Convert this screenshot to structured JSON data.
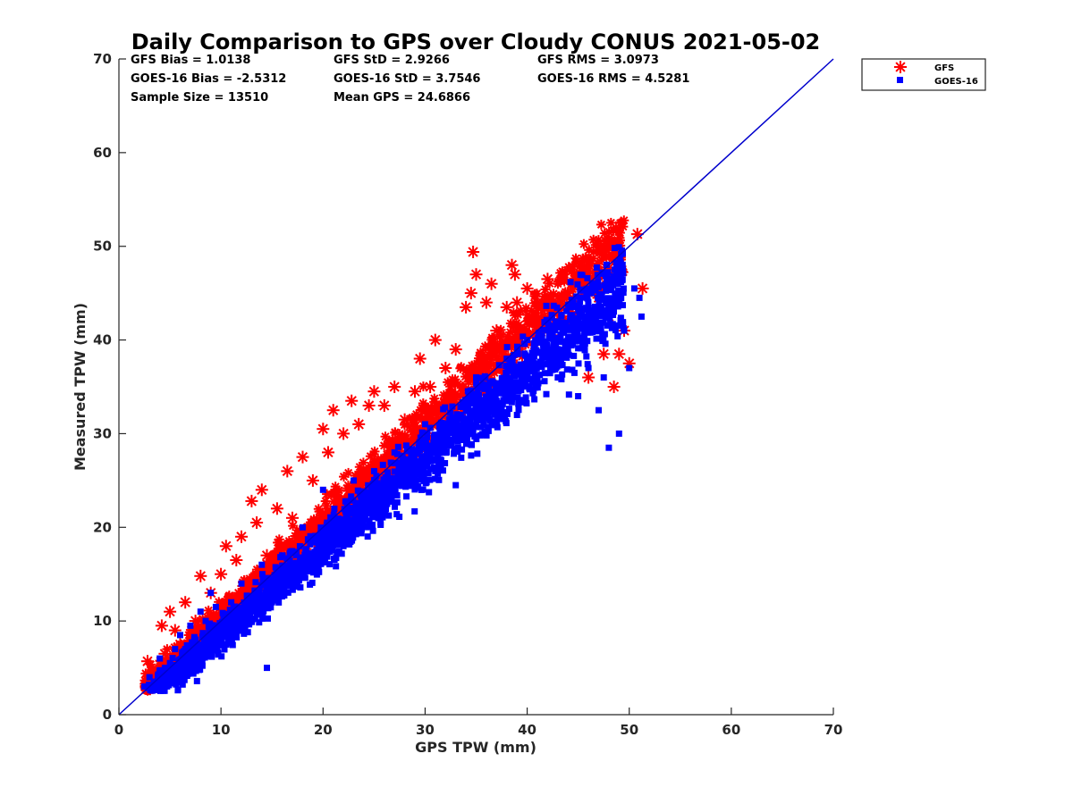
{
  "chart_data": {
    "type": "scatter",
    "title": "Daily Comparison to GPS over Cloudy CONUS 2021-05-02",
    "xlabel": "GPS TPW (mm)",
    "ylabel": "Measured TPW (mm)",
    "xlim": [
      0,
      70
    ],
    "ylim": [
      0,
      70
    ],
    "xticks": [
      "0",
      "10",
      "20",
      "30",
      "40",
      "50",
      "60",
      "70"
    ],
    "yticks": [
      "0",
      "10",
      "20",
      "30",
      "40",
      "50",
      "60",
      "70"
    ],
    "grid": false,
    "legend_position": "outside-top-right",
    "reference_line": {
      "x": [
        0,
        70
      ],
      "y": [
        0,
        70
      ],
      "color": "#0000cc"
    },
    "stats": [
      [
        "GFS Bias = 1.0138",
        "GFS StD = 2.9266",
        "GFS RMS = 3.0973"
      ],
      [
        "GOES-16 Bias = -2.5312",
        "GOES-16 StD = 3.7546",
        "GOES-16 RMS = 4.5281"
      ],
      [
        "Sample Size = 13510",
        "Mean GPS = 24.6866"
      ]
    ],
    "series": [
      {
        "name": "GFS",
        "marker": "asterisk",
        "color": "#ff0000",
        "n_points": 13510,
        "bias": 1.0138,
        "std": 2.9266,
        "x": [
          2.8,
          3.5,
          4.2,
          4.5,
          5.0,
          5.5,
          6.0,
          6.5,
          7.5,
          8.0,
          9.0,
          10.0,
          10.5,
          11.5,
          12.0,
          13.0,
          13.5,
          14.0,
          14.5,
          15.5,
          16.5,
          17.0,
          18.0,
          19.0,
          20.0,
          20.5,
          21.0,
          22.0,
          22.8,
          23.5,
          24.5,
          25.0,
          26.0,
          27.0,
          28.0,
          29.0,
          29.5,
          30.5,
          31.0,
          32.0,
          33.0,
          34.0,
          34.5,
          34.7,
          35.0,
          36.0,
          36.5,
          37.0,
          38.0,
          38.5,
          38.8,
          39.0,
          40.0,
          41.0,
          42.0,
          42.5,
          43.0,
          44.0,
          44.5,
          45.0,
          45.5,
          46.0,
          46.5,
          47.0,
          47.5,
          48.0,
          48.5,
          48.7,
          49.0,
          49.5,
          50.0,
          50.8,
          51.3
        ],
        "y": [
          5.7,
          3.8,
          9.5,
          6.5,
          11.0,
          9.0,
          7.5,
          12.0,
          10.0,
          14.8,
          13.0,
          15.0,
          18.0,
          16.5,
          19.0,
          22.8,
          20.5,
          24.0,
          17.0,
          22.0,
          26.0,
          21.0,
          27.5,
          25.0,
          30.5,
          28.0,
          32.5,
          30.0,
          33.5,
          31.0,
          33.0,
          34.5,
          33.0,
          35.0,
          31.5,
          34.5,
          38.0,
          35.0,
          40.0,
          37.0,
          39.0,
          43.5,
          45.0,
          49.4,
          47.0,
          44.0,
          46.0,
          41.0,
          43.5,
          48.0,
          47.0,
          44.0,
          45.5,
          44.0,
          46.5,
          40.5,
          42.0,
          45.0,
          47.8,
          43.0,
          46.0,
          36.0,
          49.4,
          44.5,
          38.5,
          42.5,
          35.0,
          52.0,
          38.5,
          41.0,
          37.5,
          51.3,
          45.5
        ]
      },
      {
        "name": "GOES-16",
        "marker": "square",
        "color": "#0000ff",
        "n_points": 13510,
        "bias": -2.5312,
        "std": 3.7546,
        "x": [
          2.5,
          3.0,
          3.5,
          4.0,
          4.5,
          5.0,
          5.5,
          6.0,
          6.5,
          7.0,
          7.5,
          8.0,
          8.5,
          9.0,
          9.5,
          10.0,
          11.0,
          12.0,
          13.0,
          14.0,
          14.5,
          15.0,
          16.0,
          17.0,
          18.0,
          19.0,
          20.0,
          21.0,
          22.0,
          23.0,
          24.0,
          25.0,
          26.0,
          27.0,
          28.0,
          29.0,
          30.0,
          31.0,
          32.0,
          33.0,
          34.0,
          35.0,
          36.0,
          37.0,
          38.0,
          39.0,
          40.0,
          41.0,
          42.0,
          43.0,
          44.0,
          45.0,
          46.0,
          47.0,
          47.5,
          48.0,
          49.0,
          49.5,
          50.0,
          50.5,
          51.0,
          51.2
        ],
        "y": [
          3.0,
          4.0,
          3.5,
          6.0,
          5.0,
          5.5,
          7.0,
          8.5,
          7.0,
          9.5,
          8.0,
          11.0,
          10.0,
          13.0,
          11.5,
          9.0,
          12.0,
          14.0,
          11.0,
          16.0,
          5.0,
          12.0,
          17.0,
          15.0,
          20.0,
          16.0,
          24.0,
          20.5,
          18.0,
          25.0,
          22.0,
          26.0,
          23.0,
          28.0,
          27.0,
          25.0,
          31.0,
          26.0,
          29.0,
          24.5,
          33.0,
          36.0,
          30.0,
          33.5,
          38.0,
          32.0,
          40.0,
          35.5,
          42.0,
          36.0,
          39.0,
          34.0,
          37.0,
          32.5,
          36.0,
          28.5,
          30.0,
          41.0,
          37.0,
          45.5,
          44.5,
          42.5
        ]
      }
    ]
  }
}
